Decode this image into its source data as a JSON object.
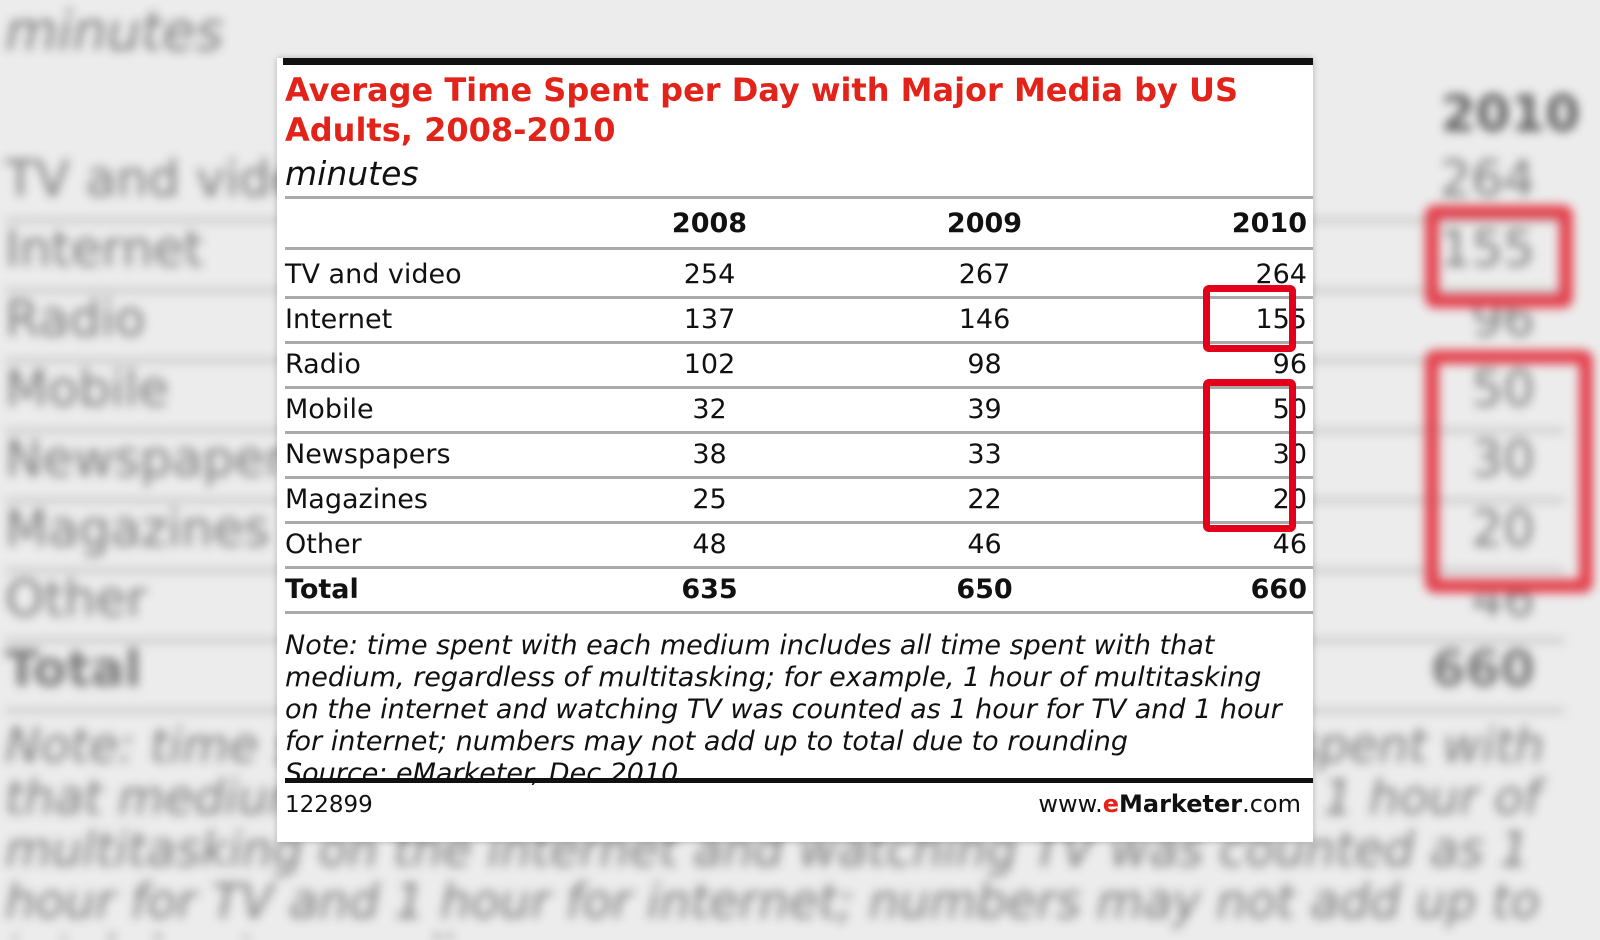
{
  "chart_data": {
    "type": "table",
    "title": "Average Time Spent per Day with Major Media by US Adults, 2008-2010",
    "subtitle": "minutes",
    "columns": [
      "2008",
      "2009",
      "2010"
    ],
    "rows": [
      {
        "label": "TV and video",
        "values": [
          "254",
          "267",
          "264"
        ]
      },
      {
        "label": "Internet",
        "values": [
          "137",
          "146",
          "155"
        ]
      },
      {
        "label": "Radio",
        "values": [
          "102",
          "98",
          "96"
        ]
      },
      {
        "label": "Mobile",
        "values": [
          "32",
          "39",
          "50"
        ]
      },
      {
        "label": "Newspapers",
        "values": [
          "38",
          "33",
          "30"
        ]
      },
      {
        "label": "Magazines",
        "values": [
          "25",
          "22",
          "20"
        ]
      },
      {
        "label": "Other",
        "values": [
          "48",
          "46",
          "46"
        ]
      }
    ],
    "total": {
      "label": "Total",
      "values": [
        "635",
        "650",
        "660"
      ]
    },
    "note": "Note: time spent with each medium includes all time spent with that medium, regardless of multitasking; for example, 1 hour of multitasking on the internet and watching TV was counted as 1 hour for TV and 1 hour for internet; numbers may not add up to total due to rounding",
    "source": "Source: eMarketer, Dec 2010",
    "highlight_color": "#e2001a",
    "highlighted_cells": [
      "Internet 2010",
      "Mobile 2010",
      "Newspapers 2010",
      "Magazines 2010"
    ]
  },
  "footer": {
    "chart_id": "122899",
    "url_prefix": "www.",
    "url_brand_e": "e",
    "url_brand_rest": "Marketer",
    "url_suffix": ".com"
  },
  "colors": {
    "title": "#e2231a",
    "accent_red": "#e2001a"
  }
}
